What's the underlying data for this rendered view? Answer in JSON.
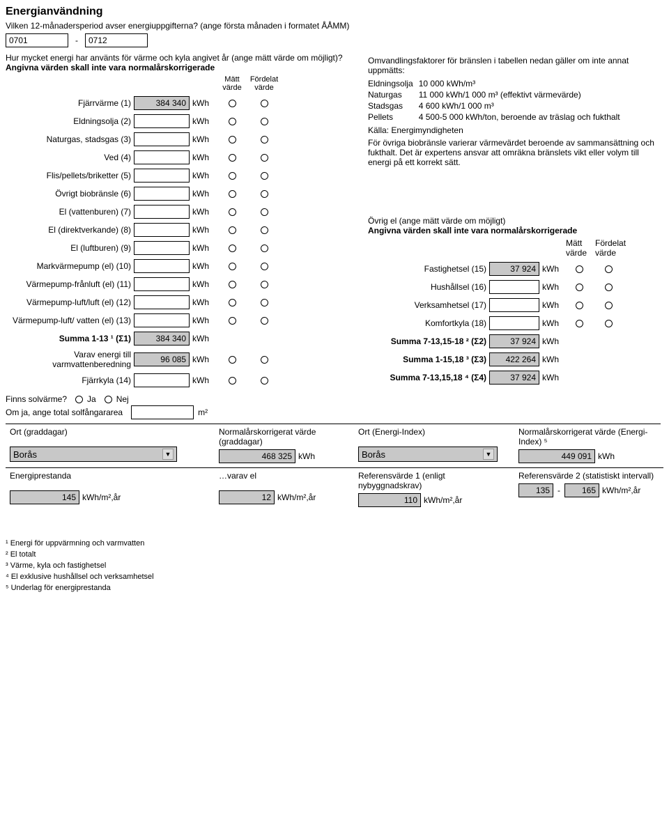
{
  "title": "Energianvändning",
  "period_q": "Vilken 12-månadersperiod avser energiuppgifterna? (ange första månaden i formatet ÅÅMM)",
  "from": "0701",
  "to": "0712",
  "dash": "-",
  "intro_l1": "Hur mycket energi har använts för värme och kyla angivet år (ange mätt värde om möjligt)?",
  "intro_l2": "Angivna värden skall inte vara normalårskorrigerade",
  "hd_matt": "Mätt värde",
  "hd_ford": "Fördelat värde",
  "rows": [
    {
      "lab": "Fjärrvärme (1)",
      "val": "384 340",
      "unit": "kWh"
    },
    {
      "lab": "Eldningsolja (2)",
      "val": "",
      "unit": "kWh"
    },
    {
      "lab": "Naturgas, stadsgas (3)",
      "val": "",
      "unit": "kWh"
    },
    {
      "lab": "Ved (4)",
      "val": "",
      "unit": "kWh"
    },
    {
      "lab": "Flis/pellets/briketter (5)",
      "val": "",
      "unit": "kWh"
    },
    {
      "lab": "Övrigt biobränsle (6)",
      "val": "",
      "unit": "kWh"
    },
    {
      "lab": "El (vattenburen) (7)",
      "val": "",
      "unit": "kWh"
    },
    {
      "lab": "El (direktverkande) (8)",
      "val": "",
      "unit": "kWh"
    },
    {
      "lab": "El (luftburen) (9)",
      "val": "",
      "unit": "kWh"
    },
    {
      "lab": "Markvärmepump (el) (10)",
      "val": "",
      "unit": "kWh"
    },
    {
      "lab": "Värmepump-frånluft (el) (11)",
      "val": "",
      "unit": "kWh"
    },
    {
      "lab": "Värmepump-luft/luft (el) (12)",
      "val": "",
      "unit": "kWh"
    },
    {
      "lab": "Värmepump-luft/ vatten (el) (13)",
      "val": "",
      "unit": "kWh"
    }
  ],
  "sum1": {
    "lab": "Summa 1-13 ¹ (Σ1)",
    "val": "384 340",
    "unit": "kWh"
  },
  "varav": {
    "lab": "Varav energi till varmvattenberedning",
    "val": "96 085",
    "unit": "kWh"
  },
  "fjarrkyla": {
    "lab": "Fjärrkyla (14)",
    "val": "",
    "unit": "kWh"
  },
  "info_header": "Omvandlingsfaktorer för bränslen i tabellen nedan gäller om inte annat uppmätts:",
  "fuel": [
    {
      "n": "Eldningsolja",
      "v": "10 000 kWh/m³"
    },
    {
      "n": "Naturgas",
      "v": "11 000 kWh/1 000 m³ (effektivt värmevärde)"
    },
    {
      "n": "Stadsgas",
      "v": "4 600 kWh/1 000 m³"
    },
    {
      "n": "Pellets",
      "v": "4 500-5 000 kWh/ton, beroende av träslag och fukthalt"
    }
  ],
  "kalla": "Källa: Energimyndigheten",
  "info_para": "För övriga biobränsle varierar värmevärdet beroende av sammansättning och fukthalt. Det är expertens ansvar att omräkna bränslets vikt eller volym till energi på ett korrekt sätt.",
  "ovrig_h1": "Övrig el (ange mätt värde om möjligt)",
  "ovrig_h2": "Angivna värden skall inte vara normalårskorrigerade",
  "right_rows": [
    {
      "lab": "Fastighetsel (15)",
      "val": "37 924",
      "unit": "kWh",
      "gray": true
    },
    {
      "lab": "Hushållsel (16)",
      "val": "",
      "unit": "kWh"
    },
    {
      "lab": "Verksamhetsel (17)",
      "val": "",
      "unit": "kWh"
    },
    {
      "lab": "Komfortkyla (18)",
      "val": "",
      "unit": "kWh"
    }
  ],
  "sum2": {
    "lab": "Summa 7-13,15-18 ² (Σ2)",
    "val": "37 924",
    "unit": "kWh"
  },
  "sum3": {
    "lab": "Summa 1-15,18 ³ (Σ3)",
    "val": "422 264",
    "unit": "kWh"
  },
  "sum4": {
    "lab": "Summa 7-13,15,18 ⁴ (Σ4)",
    "val": "37 924",
    "unit": "kWh"
  },
  "solv_q": "Finns solvärme?",
  "ja": "Ja",
  "nej": "Nej",
  "sol_area_lab": "Om ja, ange total solfångararea",
  "m2": "m²",
  "ort_gr": "Ort (graddagar)",
  "norm_gr": "Normalårskorrigerat värde (graddagar)",
  "ort_ei": "Ort (Energi-Index)",
  "norm_ei": "Normalårskorrigerat värde (Energi-Index) ⁵",
  "boras": "Borås",
  "v_norm_gr": "468 325",
  "v_norm_ei": "449 091",
  "kwh": "kWh",
  "ep_lab": "Energiprestanda",
  "ep_val": "145",
  "ep_unit": "kWh/m²,år",
  "varav_el_lab": "…varav el",
  "varav_el_val": "12",
  "ref1_lab": "Referensvärde 1 (enligt nybyggnadskrav)",
  "ref1_val": "110",
  "ref2_lab": "Referensvärde 2 (statistiskt intervall)",
  "ref2_a": "135",
  "ref2_b": "165",
  "foot1": "¹ Energi för uppvärmning och varmvatten",
  "foot2": "² El totalt",
  "foot3": "³ Värme, kyla och fastighetsel",
  "foot4": "⁴ El exklusive hushållsel och verksamhetsel",
  "foot5": "⁵ Underlag för energiprestanda"
}
